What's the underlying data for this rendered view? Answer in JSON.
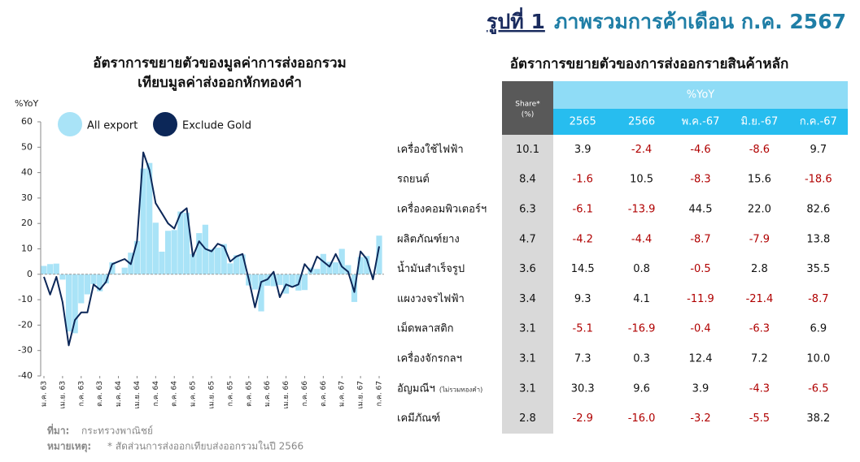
{
  "header": {
    "figure_label": "รูปที่ 1",
    "title": "ภาพรวมการค้าเดือน ก.ค. 2567"
  },
  "chart_data": {
    "type": "bar_line",
    "title_lines": [
      "อัตราการขยายตัวของมูลค่าการส่งออกรวม",
      "เทียบมูลค่าส่งออกหักทองคำ"
    ],
    "y_label": "%YoY",
    "categories": [
      "ม.ค. 63",
      null,
      null,
      "เม.ย. 63",
      null,
      null,
      "ก.ค. 63",
      null,
      null,
      "ต.ค. 63",
      null,
      null,
      "ม.ค. 64",
      null,
      null,
      "เม.ย. 64",
      null,
      null,
      "ก.ค. 64",
      null,
      null,
      "ต.ค. 64",
      null,
      null,
      "ม.ค. 65",
      null,
      null,
      "เม.ย. 65",
      null,
      null,
      "ก.ค. 65",
      null,
      null,
      "ต.ค. 65",
      null,
      null,
      "ม.ค. 66",
      null,
      null,
      "เม.ย. 66",
      null,
      null,
      "ก.ค. 66",
      null,
      null,
      "ต.ค. 66",
      null,
      null,
      "ม.ค. 67",
      null,
      null,
      "เม.ย. 67",
      null,
      null,
      "ก.ค. 67"
    ],
    "series": [
      {
        "name": "All export",
        "type": "bar",
        "color": "#a9e3f7",
        "values": [
          3.3,
          4.0,
          4.2,
          -2.1,
          -22.5,
          -23.2,
          -11.4,
          -7.9,
          -3.9,
          -6.7,
          -3.6,
          4.7,
          0.3,
          2.6,
          8.5,
          13.1,
          41.6,
          43.8,
          20.3,
          8.9,
          17.1,
          17.4,
          24.7,
          24.2,
          8.0,
          16.2,
          19.5,
          9.9,
          10.5,
          11.9,
          4.3,
          7.5,
          7.8,
          -4.4,
          -6.0,
          -14.6,
          -4.5,
          -4.7,
          -4.2,
          -7.6,
          -4.6,
          -6.4,
          -6.2,
          2.6,
          2.1,
          8.0,
          4.9,
          4.7,
          10.0,
          3.6,
          -10.9,
          6.8,
          7.2,
          0.3,
          15.2
        ]
      },
      {
        "name": "Exclude Gold",
        "type": "line",
        "color": "#0c2758",
        "values": [
          -1,
          -8,
          -1,
          -11,
          -28,
          -18,
          -15,
          -15,
          -4,
          -6,
          -3,
          4,
          5,
          6,
          4,
          13,
          48,
          41,
          28,
          24,
          20,
          18,
          24,
          26,
          7,
          13,
          10,
          9,
          12,
          11,
          5,
          7,
          8,
          -2,
          -13,
          -3,
          -2,
          1,
          -9,
          -4,
          -5,
          -4,
          4,
          1,
          7,
          5,
          3,
          8,
          3,
          1,
          -7,
          9,
          6,
          -2,
          11
        ]
      }
    ],
    "ylim": [
      -40,
      60
    ],
    "yticks": [
      -40,
      -30,
      -20,
      -10,
      0,
      10,
      20,
      30,
      40,
      50,
      60
    ]
  },
  "table": {
    "title": "อัตราการขยายตัวของการส่งออกรายสินค้าหลัก",
    "share_header": [
      "Share*",
      "(%)"
    ],
    "group_header": "%YoY",
    "columns": [
      "2565",
      "2566",
      "พ.ค.-67",
      "มิ.ย.-67",
      "ก.ค.-67"
    ],
    "rows": [
      {
        "name": "เครื่องใช้ไฟฟ้า",
        "share": "10.1",
        "values": [
          "3.9",
          "-2.4",
          "-4.6",
          "-8.6",
          "9.7"
        ]
      },
      {
        "name": "รถยนต์",
        "share": "8.4",
        "values": [
          "-1.6",
          "10.5",
          "-8.3",
          "15.6",
          "-18.6"
        ]
      },
      {
        "name": "เครื่องคอมพิวเตอร์ฯ",
        "share": "6.3",
        "values": [
          "-6.1",
          "-13.9",
          "44.5",
          "22.0",
          "82.6"
        ]
      },
      {
        "name": "ผลิตภัณฑ์ยาง",
        "share": "4.7",
        "values": [
          "-4.2",
          "-4.4",
          "-8.7",
          "-7.9",
          "13.8"
        ]
      },
      {
        "name": "น้ำมันสำเร็จรูป",
        "share": "3.6",
        "values": [
          "14.5",
          "0.8",
          "-0.5",
          "2.8",
          "35.5"
        ]
      },
      {
        "name": "แผงวงจรไฟฟ้า",
        "share": "3.4",
        "values": [
          "9.3",
          "4.1",
          "-11.9",
          "-21.4",
          "-8.7"
        ]
      },
      {
        "name": "เม็ดพลาสติก",
        "share": "3.1",
        "values": [
          "-5.1",
          "-16.9",
          "-0.4",
          "-6.3",
          "6.9"
        ]
      },
      {
        "name": "เครื่องจักรกลฯ",
        "share": "3.1",
        "values": [
          "7.3",
          "0.3",
          "12.4",
          "7.2",
          "10.0"
        ]
      },
      {
        "name": "อัญมณีฯ",
        "note": "(ไม่รวมทองคำ)",
        "share": "3.1",
        "values": [
          "30.3",
          "9.6",
          "3.9",
          "-4.3",
          "-6.5"
        ]
      },
      {
        "name": "เคมีภัณฑ์",
        "share": "2.8",
        "values": [
          "-2.9",
          "-16.0",
          "-3.2",
          "-5.5",
          "38.2"
        ]
      }
    ]
  },
  "footer": {
    "source_label": "ที่มา:",
    "source": "กระทรวงพาณิชย์",
    "note_label": "หมายเหตุ:",
    "note": "* สัดส่วนการส่งออกเทียบส่งออกรวมในปี 2566"
  }
}
